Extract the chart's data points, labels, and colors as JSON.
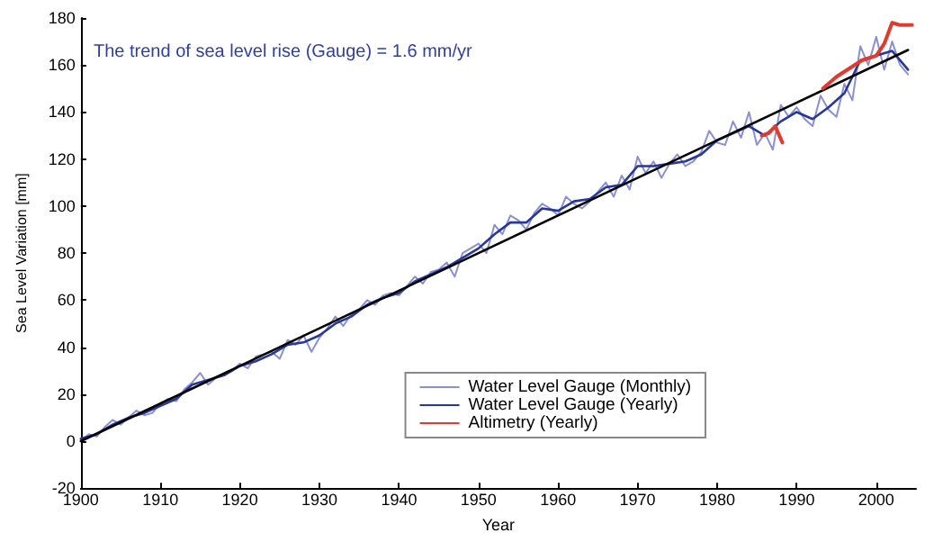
{
  "chart_data": {
    "type": "line",
    "xlabel": "Year",
    "ylabel": "Sea Level Variation [mm]",
    "annotations": [
      "The trend of sea level rise (Gauge) = 1.6 mm/yr"
    ],
    "xlim": [
      1900,
      2005
    ],
    "xticks": [
      1900,
      1910,
      1920,
      1930,
      1940,
      1950,
      1960,
      1970,
      1980,
      1990,
      2000
    ],
    "ylim": [
      -20,
      180
    ],
    "yticks": [
      -20,
      0,
      20,
      40,
      60,
      80,
      100,
      120,
      140,
      160,
      180
    ],
    "grid": false,
    "legend": "bottom right",
    "marker": "none",
    "line_style": "solid",
    "series": [
      {
        "name": "Water Level Gauge (Monthly)",
        "color": "#8a90d4",
        "x": [
          1900,
          1901,
          1902,
          1903,
          1904,
          1905,
          1906,
          1907,
          1908,
          1909,
          1910,
          1911,
          1912,
          1913,
          1914,
          1915,
          1916,
          1917,
          1918,
          1919,
          1920,
          1921,
          1922,
          1923,
          1924,
          1925,
          1926,
          1927,
          1928,
          1929,
          1930,
          1931,
          1932,
          1933,
          1934,
          1935,
          1936,
          1937,
          1938,
          1939,
          1940,
          1941,
          1942,
          1943,
          1944,
          1945,
          1946,
          1947,
          1948,
          1949,
          1950,
          1951,
          1952,
          1953,
          1954,
          1955,
          1956,
          1957,
          1958,
          1959,
          1960,
          1961,
          1962,
          1963,
          1964,
          1965,
          1966,
          1967,
          1968,
          1969,
          1970,
          1971,
          1972,
          1973,
          1974,
          1975,
          1976,
          1977,
          1978,
          1979,
          1980,
          1981,
          1982,
          1983,
          1984,
          1985,
          1986,
          1987,
          1988,
          1989,
          1990,
          1991,
          1992,
          1993,
          1994,
          1995,
          1996,
          1997,
          1998,
          1999,
          2000,
          2001,
          2002,
          2003,
          2004
        ],
        "values": [
          0,
          3,
          2,
          6,
          9,
          7,
          10,
          13,
          11,
          12,
          16,
          18,
          17,
          22,
          25,
          29,
          24,
          27,
          28,
          30,
          33,
          31,
          36,
          37,
          38,
          35,
          43,
          41,
          45,
          38,
          44,
          48,
          53,
          49,
          54,
          56,
          60,
          58,
          62,
          63,
          62,
          66,
          70,
          67,
          72,
          73,
          76,
          70,
          80,
          82,
          84,
          80,
          92,
          88,
          96,
          94,
          90,
          97,
          101,
          99,
          96,
          104,
          101,
          99,
          102,
          106,
          110,
          104,
          113,
          107,
          121,
          114,
          119,
          112,
          118,
          122,
          117,
          119,
          123,
          132,
          127,
          126,
          136,
          129,
          140,
          126,
          131,
          124,
          143,
          138,
          142,
          137,
          134,
          147,
          141,
          138,
          152,
          145,
          168,
          160,
          172,
          158,
          170,
          160,
          156
        ]
      },
      {
        "name": "Water Level Gauge (Yearly)",
        "color": "#27379a",
        "x": [
          1900,
          1902,
          1904,
          1906,
          1908,
          1910,
          1912,
          1914,
          1916,
          1918,
          1920,
          1922,
          1924,
          1926,
          1928,
          1930,
          1932,
          1934,
          1936,
          1938,
          1940,
          1942,
          1944,
          1946,
          1948,
          1950,
          1952,
          1954,
          1956,
          1958,
          1960,
          1962,
          1964,
          1966,
          1968,
          1970,
          1972,
          1974,
          1976,
          1978,
          1980,
          1982,
          1984,
          1986,
          1988,
          1990,
          1992,
          1994,
          1996,
          1998,
          2000,
          2002,
          2004
        ],
        "values": [
          1,
          3,
          7,
          10,
          12,
          15,
          18,
          24,
          26,
          28,
          32,
          34,
          37,
          41,
          42,
          45,
          50,
          53,
          58,
          61,
          63,
          68,
          71,
          74,
          78,
          82,
          88,
          93,
          93,
          99,
          98,
          102,
          103,
          108,
          109,
          117,
          117,
          118,
          119,
          122,
          128,
          131,
          134,
          130,
          136,
          140,
          137,
          142,
          148,
          162,
          164,
          166,
          158
        ]
      },
      {
        "name": "Altimetry (Yearly)",
        "color": "#e23a2e",
        "x": [
          1993.3,
          1995,
          1998.2,
          2000,
          2001,
          2002,
          2003,
          2004.5
        ],
        "values": [
          150,
          155,
          162,
          164,
          169,
          178,
          177,
          177
        ]
      },
      {
        "type": "line",
        "color": "#e23a2e",
        "x": [
          1985.6,
          1986.5,
          1987.3,
          1988.2
        ],
        "values": [
          130,
          131,
          134,
          127
        ]
      },
      {
        "type": "line",
        "color": "#000000",
        "x": [
          1900,
          2004
        ],
        "values": [
          0,
          166.4
        ]
      }
    ]
  }
}
